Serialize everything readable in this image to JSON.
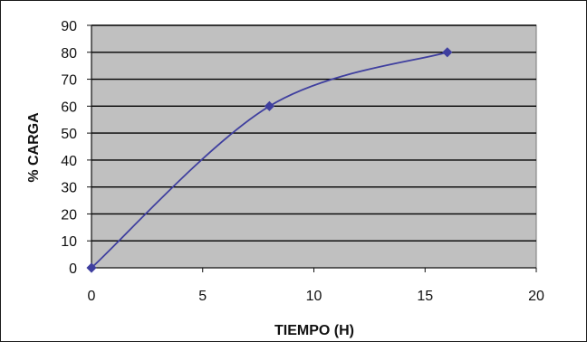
{
  "chart_data": {
    "type": "line",
    "title": "",
    "xlabel": "TIEMPO (H)",
    "ylabel": "% CARGA",
    "xlim": [
      0,
      20
    ],
    "ylim": [
      0,
      90
    ],
    "x_ticks": [
      0,
      5,
      10,
      15,
      20
    ],
    "y_ticks": [
      0,
      10,
      20,
      30,
      40,
      50,
      60,
      70,
      80,
      90
    ],
    "grid": true,
    "legend": "none",
    "series": [
      {
        "x": [
          0,
          8,
          16
        ],
        "y": [
          0,
          60,
          80
        ],
        "color": "#3f3f9f",
        "marker": "diamond",
        "smooth": true
      }
    ],
    "colors": {
      "plot_background": "#c0c0c0",
      "gridline": "#000000",
      "line": "#3f3f9f"
    }
  }
}
